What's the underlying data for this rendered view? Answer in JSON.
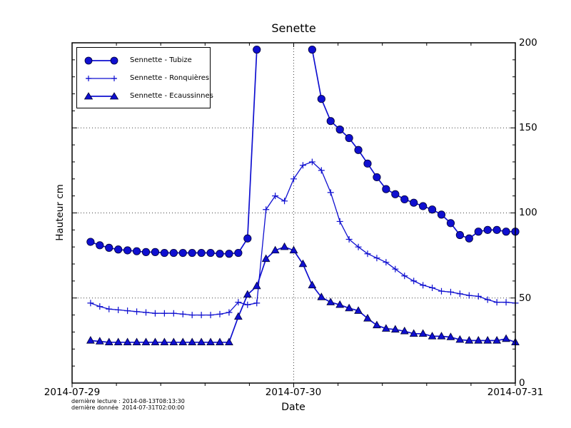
{
  "title": "Senette",
  "axes": {
    "xlabel": "Date",
    "ylabel": "Hauteur cm",
    "x_tick_labels": [
      "2014-07-29",
      "2014-07-30",
      "2014-07-31"
    ],
    "y_tick_labels": [
      "200",
      "150",
      "100",
      "50",
      "0"
    ]
  },
  "footer": {
    "line1": "dernière lecture : 2014-08-13T08:13:30",
    "line2": "dernière donnée  2014-07-31T02:00:00"
  },
  "colors": {
    "series_blue": "#0f0fd0",
    "marker_edge": "#000033",
    "frame": "#000000",
    "grid": "#444444",
    "background": "#ffffff"
  },
  "chart_data": {
    "type": "line",
    "title": "Senette",
    "xlabel": "Date",
    "ylabel": "Hauteur cm",
    "ylim": [
      0,
      200
    ],
    "y_major_ticks": [
      0,
      50,
      100,
      150,
      200
    ],
    "y_minor_tick_step": 10,
    "y_gridlines": [
      50,
      100,
      150
    ],
    "x_tick_labels": [
      "2014-07-29",
      "2014-07-30",
      "2014-07-31"
    ],
    "x_total_hours": 48,
    "x_start_hour": 2,
    "x_step_hours": 1,
    "x_minor_tick_step_hours": 4.8,
    "x_gridline_hour": 24,
    "grid_style": "dotted",
    "legend_position": "upper left",
    "series": [
      {
        "name": "Sennette - Tubize",
        "marker": "circle",
        "values": [
          83,
          81,
          79.5,
          78.5,
          78,
          77.5,
          77,
          77,
          76.5,
          76.5,
          76.5,
          76.5,
          76.5,
          76.5,
          76,
          76,
          76.5,
          85,
          196,
          null,
          null,
          null,
          null,
          null,
          196,
          167,
          154,
          149,
          144,
          137,
          129,
          121,
          114,
          111,
          108,
          106,
          104,
          102,
          99,
          94,
          87,
          85,
          89,
          90,
          90,
          89,
          89
        ]
      },
      {
        "name": "Sennette - Ronquières",
        "marker": "plus",
        "values": [
          47,
          45,
          43.5,
          43,
          42.5,
          42,
          41.5,
          41,
          41,
          41,
          40.5,
          40,
          40,
          40,
          40.5,
          41.5,
          47.5,
          46,
          47,
          102,
          110,
          107,
          120,
          128,
          130,
          125,
          112,
          95,
          84.5,
          80,
          76,
          73.5,
          71,
          67,
          63,
          60,
          57.5,
          56,
          54,
          53.5,
          52.5,
          51.5,
          51,
          49,
          47.5,
          47.5,
          47
        ]
      },
      {
        "name": "Sennette - Ecaussinnes",
        "marker": "triangle",
        "values": [
          25,
          24.5,
          24,
          24,
          24,
          24,
          24,
          24,
          24,
          24,
          24,
          24,
          24,
          24,
          24,
          24,
          39,
          52,
          57,
          73,
          78,
          80,
          78,
          70,
          57.5,
          50.5,
          47.5,
          46,
          44,
          42.5,
          38,
          34,
          32,
          31.5,
          30.5,
          29,
          29,
          27.5,
          27.5,
          27,
          25.5,
          25,
          25,
          25,
          25,
          26,
          24
        ]
      }
    ]
  }
}
